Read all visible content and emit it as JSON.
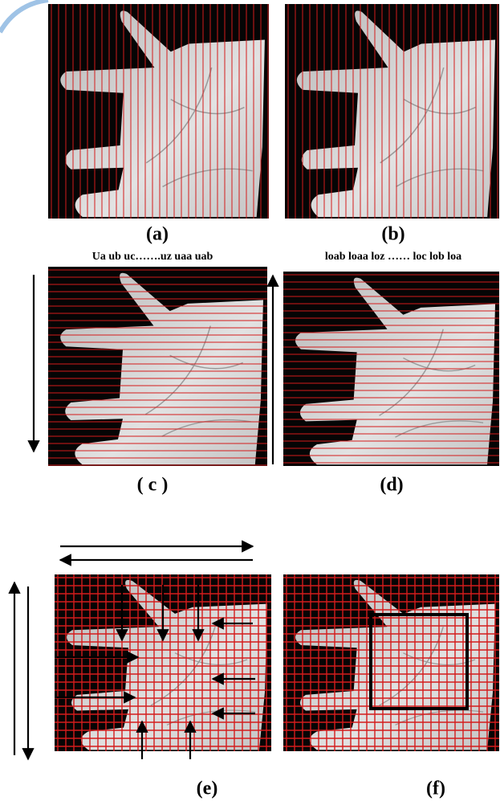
{
  "panels": [
    {
      "label": "(a)"
    },
    {
      "label": "(b)"
    },
    {
      "label": "( c )"
    },
    {
      "label": "(d)"
    },
    {
      "label": "(e)"
    },
    {
      "label": "(f)"
    }
  ],
  "sequence_labels": [
    "Ua ub uc…….uz uaa uab",
    "loab loaa loz …… loc lob loa"
  ]
}
